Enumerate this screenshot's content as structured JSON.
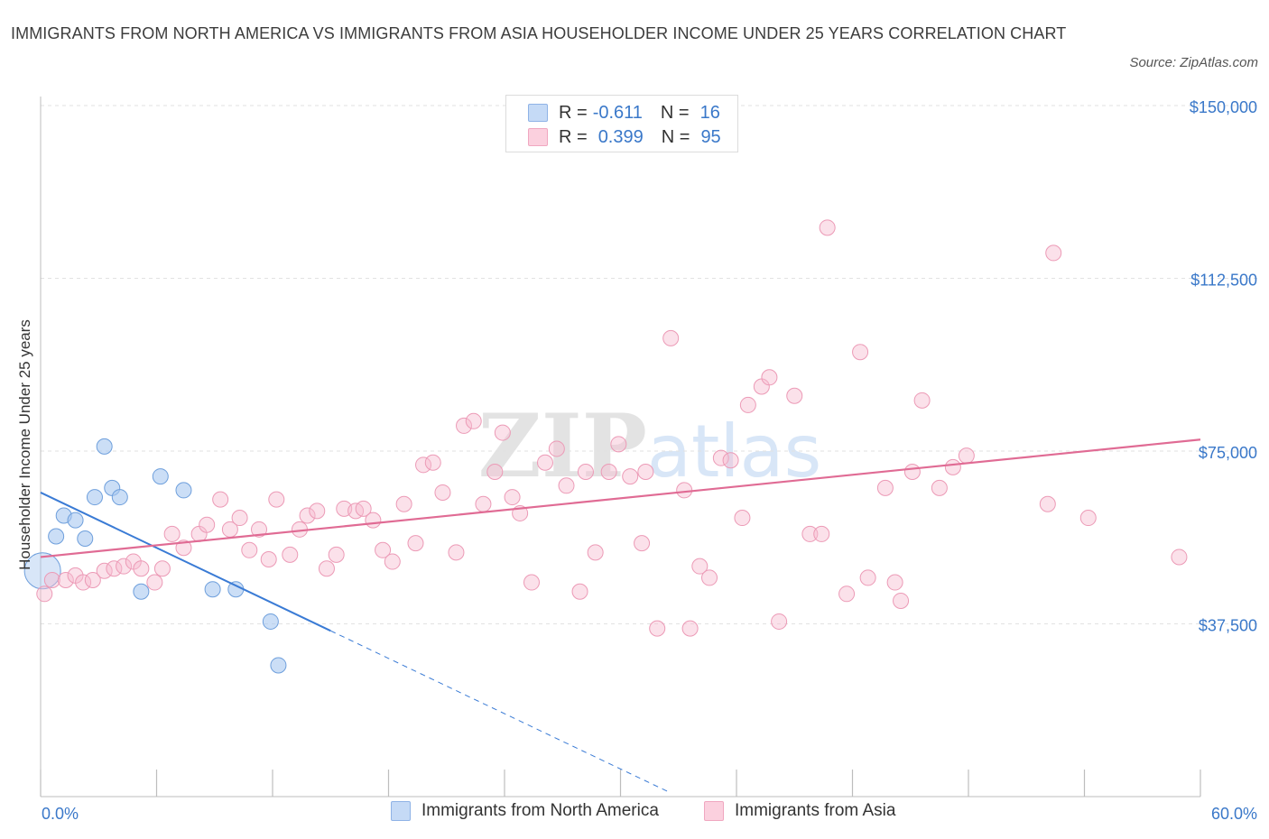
{
  "title": "IMMIGRANTS FROM NORTH AMERICA VS IMMIGRANTS FROM ASIA HOUSEHOLDER INCOME UNDER 25 YEARS CORRELATION CHART",
  "source": "Source: ZipAtlas.com",
  "watermark": "ZIPatlas",
  "legend": {
    "r_label": "R =",
    "n_label": "N =",
    "rows": [
      {
        "r": "-0.611",
        "n": "16",
        "color": "#a9c8f0"
      },
      {
        "r": "0.399",
        "n": "95",
        "color": "#f7bcd0"
      }
    ]
  },
  "chart_data": {
    "type": "scatter",
    "ylabel": "Householder Income Under 25 years",
    "xlim": [
      0,
      60
    ],
    "ylim": [
      0,
      150000
    ],
    "x_tick_labels": [
      "0.0%",
      "60.0%"
    ],
    "y_ticks": [
      {
        "value": 37500,
        "label": "$37,500"
      },
      {
        "value": 75000,
        "label": "$75,000"
      },
      {
        "value": 112500,
        "label": "$112,500"
      },
      {
        "value": 150000,
        "label": "$150,000"
      }
    ],
    "grid": true,
    "legend_position": "bottom",
    "colors": {
      "north_america": "#a9c8f0",
      "north_america_line": "#3a7bd5",
      "asia": "#f7bcd0",
      "asia_line": "#e06b94",
      "tick": "#3a78c9"
    },
    "series": [
      {
        "name": "Immigrants from North America",
        "color": "#a9c8f0",
        "trend": {
          "x0": 0,
          "y0": 66000,
          "x1": 15,
          "y1": 36000,
          "dash_to_x": 32.6
        },
        "points": [
          {
            "x": 0.1,
            "y": 49000,
            "big": true
          },
          {
            "x": 0.8,
            "y": 56500
          },
          {
            "x": 1.2,
            "y": 61000
          },
          {
            "x": 1.8,
            "y": 60000
          },
          {
            "x": 2.3,
            "y": 56000
          },
          {
            "x": 2.8,
            "y": 65000
          },
          {
            "x": 3.3,
            "y": 76000
          },
          {
            "x": 3.7,
            "y": 67000
          },
          {
            "x": 4.1,
            "y": 65000
          },
          {
            "x": 5.2,
            "y": 44500
          },
          {
            "x": 6.2,
            "y": 69500
          },
          {
            "x": 7.4,
            "y": 66500
          },
          {
            "x": 8.9,
            "y": 45000
          },
          {
            "x": 10.1,
            "y": 45000
          },
          {
            "x": 11.9,
            "y": 38000
          },
          {
            "x": 12.3,
            "y": 28500
          }
        ]
      },
      {
        "name": "Immigrants from Asia",
        "color": "#f7bcd0",
        "trend": {
          "x0": 0,
          "y0": 52000,
          "x1": 60,
          "y1": 77500
        },
        "points": [
          {
            "x": 0.2,
            "y": 44000
          },
          {
            "x": 0.6,
            "y": 47000
          },
          {
            "x": 1.3,
            "y": 47000
          },
          {
            "x": 1.8,
            "y": 48000
          },
          {
            "x": 2.2,
            "y": 46500
          },
          {
            "x": 2.7,
            "y": 47000
          },
          {
            "x": 3.3,
            "y": 49000
          },
          {
            "x": 3.8,
            "y": 49500
          },
          {
            "x": 4.3,
            "y": 50000
          },
          {
            "x": 4.8,
            "y": 51000
          },
          {
            "x": 5.2,
            "y": 49500
          },
          {
            "x": 5.9,
            "y": 46500
          },
          {
            "x": 6.3,
            "y": 49500
          },
          {
            "x": 6.8,
            "y": 57000
          },
          {
            "x": 7.4,
            "y": 54000
          },
          {
            "x": 8.2,
            "y": 57000
          },
          {
            "x": 8.6,
            "y": 59000
          },
          {
            "x": 9.3,
            "y": 64500
          },
          {
            "x": 9.8,
            "y": 58000
          },
          {
            "x": 10.3,
            "y": 60500
          },
          {
            "x": 10.8,
            "y": 53500
          },
          {
            "x": 11.3,
            "y": 58000
          },
          {
            "x": 11.8,
            "y": 51500
          },
          {
            "x": 12.2,
            "y": 64500
          },
          {
            "x": 12.9,
            "y": 52500
          },
          {
            "x": 13.4,
            "y": 58000
          },
          {
            "x": 13.8,
            "y": 61000
          },
          {
            "x": 14.3,
            "y": 62000
          },
          {
            "x": 14.8,
            "y": 49500
          },
          {
            "x": 15.3,
            "y": 52500
          },
          {
            "x": 15.7,
            "y": 62500
          },
          {
            "x": 16.3,
            "y": 62000
          },
          {
            "x": 16.7,
            "y": 62500
          },
          {
            "x": 17.2,
            "y": 60000
          },
          {
            "x": 17.7,
            "y": 53500
          },
          {
            "x": 18.2,
            "y": 51000
          },
          {
            "x": 18.8,
            "y": 63500
          },
          {
            "x": 19.4,
            "y": 55000
          },
          {
            "x": 19.8,
            "y": 72000
          },
          {
            "x": 20.3,
            "y": 72500
          },
          {
            "x": 20.8,
            "y": 66000
          },
          {
            "x": 21.5,
            "y": 53000
          },
          {
            "x": 21.9,
            "y": 80500
          },
          {
            "x": 22.4,
            "y": 81500
          },
          {
            "x": 22.9,
            "y": 63500
          },
          {
            "x": 23.5,
            "y": 70500
          },
          {
            "x": 23.9,
            "y": 79000
          },
          {
            "x": 24.4,
            "y": 65000
          },
          {
            "x": 24.8,
            "y": 61500
          },
          {
            "x": 25.4,
            "y": 46500
          },
          {
            "x": 26.1,
            "y": 72500
          },
          {
            "x": 26.7,
            "y": 75500
          },
          {
            "x": 27.2,
            "y": 67500
          },
          {
            "x": 27.9,
            "y": 44500
          },
          {
            "x": 28.2,
            "y": 70500
          },
          {
            "x": 28.7,
            "y": 53000
          },
          {
            "x": 29.4,
            "y": 70500
          },
          {
            "x": 29.9,
            "y": 76500
          },
          {
            "x": 30.5,
            "y": 69500
          },
          {
            "x": 31.1,
            "y": 55000
          },
          {
            "x": 31.3,
            "y": 70500
          },
          {
            "x": 31.9,
            "y": 36500
          },
          {
            "x": 32.6,
            "y": 99500
          },
          {
            "x": 33.3,
            "y": 66500
          },
          {
            "x": 33.6,
            "y": 36500
          },
          {
            "x": 34.1,
            "y": 50000
          },
          {
            "x": 34.6,
            "y": 47500
          },
          {
            "x": 35.2,
            "y": 73500
          },
          {
            "x": 35.7,
            "y": 73000
          },
          {
            "x": 36.3,
            "y": 60500
          },
          {
            "x": 36.6,
            "y": 85000
          },
          {
            "x": 37.3,
            "y": 89000
          },
          {
            "x": 37.7,
            "y": 91000
          },
          {
            "x": 38.2,
            "y": 38000
          },
          {
            "x": 39.0,
            "y": 87000
          },
          {
            "x": 39.8,
            "y": 57000
          },
          {
            "x": 40.4,
            "y": 57000
          },
          {
            "x": 40.7,
            "y": 123500
          },
          {
            "x": 41.7,
            "y": 44000
          },
          {
            "x": 42.4,
            "y": 96500
          },
          {
            "x": 42.8,
            "y": 47500
          },
          {
            "x": 43.7,
            "y": 67000
          },
          {
            "x": 44.2,
            "y": 46500
          },
          {
            "x": 44.5,
            "y": 42500
          },
          {
            "x": 45.1,
            "y": 70500
          },
          {
            "x": 45.6,
            "y": 86000
          },
          {
            "x": 46.5,
            "y": 67000
          },
          {
            "x": 47.2,
            "y": 71500
          },
          {
            "x": 47.9,
            "y": 74000
          },
          {
            "x": 52.1,
            "y": 63500
          },
          {
            "x": 52.4,
            "y": 118000
          },
          {
            "x": 54.2,
            "y": 60500
          },
          {
            "x": 58.9,
            "y": 52000
          }
        ]
      }
    ]
  },
  "bottom_legend": [
    "Immigrants from North America",
    "Immigrants from Asia"
  ]
}
